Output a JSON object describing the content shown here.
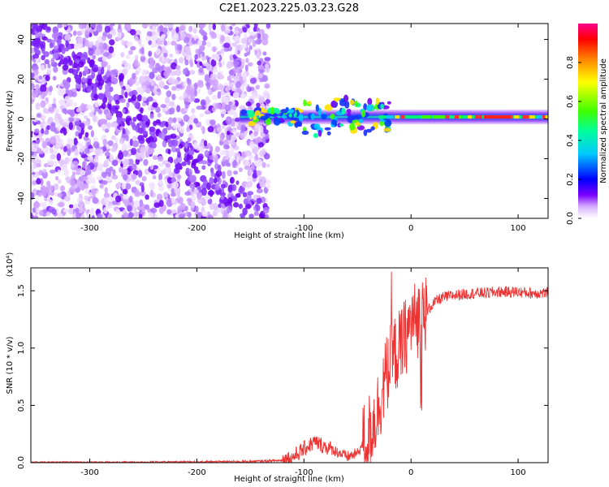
{
  "title": "C2E1.2023.225.03.23.G28",
  "chart_data": [
    {
      "type": "heatmap",
      "xlabel": "Height of straight line (km)",
      "ylabel": "Frequency (Hz)",
      "xlim": [
        -355,
        128
      ],
      "ylim": [
        -50,
        48
      ],
      "xticks": [
        -300,
        -200,
        -100,
        0,
        100
      ],
      "yticks": [
        -40,
        -20,
        0,
        20,
        40
      ],
      "colorbar": {
        "label": "Normalized spectral amplitude",
        "range": [
          0.0,
          1.0
        ],
        "ticks": [
          "0.0",
          "0.2",
          "0.4",
          "0.6",
          "0.8"
        ],
        "tick_values": [
          0.0,
          0.2,
          0.4,
          0.6,
          0.8
        ],
        "colormap": [
          "#ffffff",
          "#d8b0ff",
          "#7a00ff",
          "#0000ff",
          "#00c8ff",
          "#00ff9a",
          "#40ff00",
          "#ffff00",
          "#ff8000",
          "#ff0000",
          "#ff0090"
        ]
      },
      "regions": {
        "scatter_x": [
          -355,
          -133
        ],
        "band_x": [
          -160,
          128
        ],
        "band_center_hz": 1
      }
    },
    {
      "type": "line",
      "xlabel": "Height of straight line (km)",
      "ylabel": "SNR (10 * v/v)",
      "yscale_label": "(x10⁴)",
      "xlim": [
        -355,
        128
      ],
      "ylim": [
        0.0,
        1.7
      ],
      "xticks": [
        -300,
        -200,
        -100,
        0,
        100
      ],
      "yticks": [
        0.0,
        0.5,
        1.0,
        1.5
      ],
      "ytick_labels": [
        "0.0",
        "0.5",
        "1.0",
        "1.5"
      ],
      "color": "#ee3333",
      "series": [
        {
          "x": [
            -355,
            -300,
            -200,
            -150,
            -120,
            -110,
            -100,
            -90,
            -80,
            -70,
            -60,
            -50,
            -40,
            -35,
            -30,
            -25,
            -20,
            -15,
            -10,
            -5,
            0,
            5,
            10,
            15,
            20,
            25,
            30,
            40,
            50,
            60,
            70,
            80,
            90,
            100,
            110,
            120,
            128
          ],
          "y": [
            0.0,
            0.0,
            0.005,
            0.01,
            0.02,
            0.05,
            0.12,
            0.18,
            0.14,
            0.1,
            0.05,
            0.08,
            0.25,
            0.35,
            0.5,
            0.7,
            0.85,
            0.95,
            1.0,
            1.1,
            1.22,
            1.25,
            1.28,
            1.32,
            1.38,
            1.42,
            1.44,
            1.46,
            1.47,
            1.48,
            1.48,
            1.49,
            1.49,
            1.49,
            1.48,
            1.48,
            1.48
          ]
        }
      ]
    }
  ]
}
